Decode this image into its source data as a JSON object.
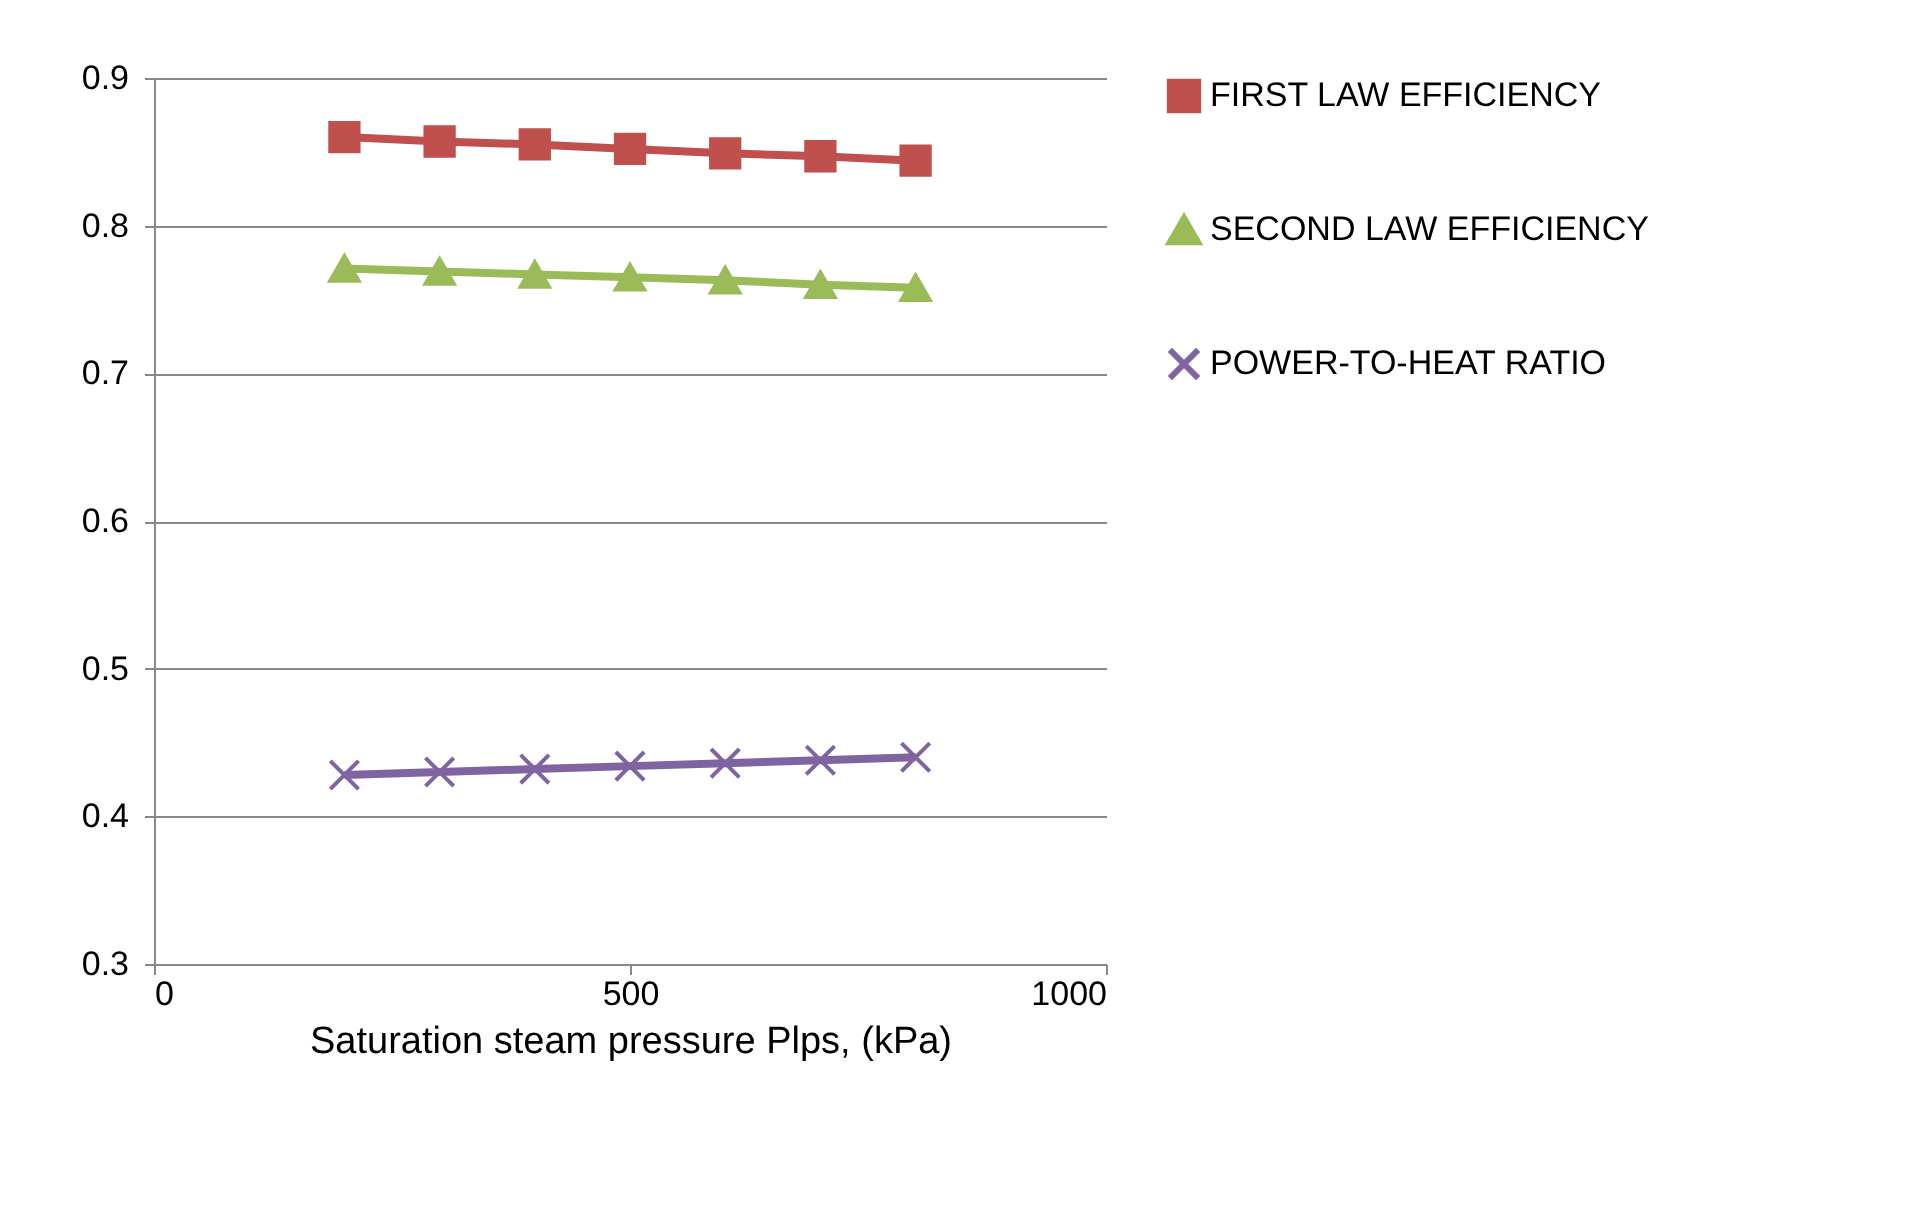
{
  "chart_data": {
    "type": "line",
    "xlabel": "Saturation steam pressure Plps, (kPa)",
    "x": [
      200,
      300,
      400,
      500,
      600,
      700,
      800
    ],
    "xlim": [
      0,
      1000
    ],
    "xticks": [
      0,
      500,
      1000
    ],
    "ylim": [
      0.3,
      0.9
    ],
    "yticks": [
      0.3,
      0.4,
      0.5,
      0.6,
      0.7,
      0.8,
      0.9
    ],
    "grid": "y",
    "legend": "right",
    "series": [
      {
        "name": "FIRST LAW EFFICIENCY",
        "color": "#c0504d",
        "marker": "square",
        "values": [
          0.86,
          0.857,
          0.855,
          0.852,
          0.849,
          0.847,
          0.844
        ]
      },
      {
        "name": "SECOND LAW EFFICIENCY",
        "color": "#9bbb59",
        "marker": "triangle",
        "values": [
          0.771,
          0.769,
          0.767,
          0.765,
          0.763,
          0.76,
          0.758
        ]
      },
      {
        "name": "POWER-TO-HEAT RATIO",
        "color": "#8064a2",
        "marker": "cross",
        "values": [
          0.428,
          0.43,
          0.432,
          0.434,
          0.436,
          0.438,
          0.44
        ]
      }
    ]
  }
}
